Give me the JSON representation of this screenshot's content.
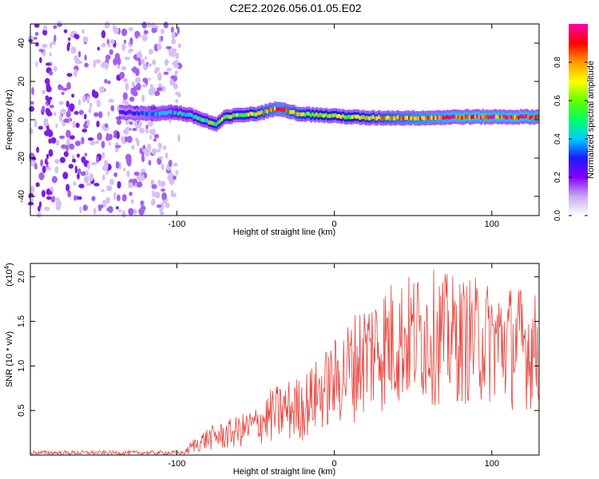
{
  "figure_title": "C2E2.2026.056.01.05.E02",
  "chart_data": [
    {
      "type": "heatmap",
      "title": "C2E2.2026.056.01.05.E02",
      "xlabel": "Height of straight line (km)",
      "ylabel": "Frequency (Hz)",
      "xlim": [
        -193,
        130
      ],
      "ylim": [
        -50,
        50
      ],
      "xticks": [
        -100,
        0,
        100
      ],
      "xtick_labels": [
        "-100",
        "0",
        "100"
      ],
      "yticks": [
        -40,
        -20,
        0,
        20,
        40
      ],
      "ytick_labels": [
        "-40",
        "-20",
        "0",
        "20",
        "40"
      ],
      "noise_region_x": [
        -193,
        -98
      ],
      "signal_start_x": -136,
      "ridge": {
        "x": [
          -136,
          -125,
          -115,
          -105,
          -98,
          -90,
          -80,
          -75,
          -70,
          -60,
          -50,
          -40,
          -35,
          -30,
          -25,
          -20,
          -10,
          0,
          10,
          20,
          40,
          60,
          80,
          100,
          120,
          130
        ],
        "freq": [
          4,
          3.5,
          3,
          4,
          3.5,
          2,
          -1,
          -2.5,
          1,
          2.5,
          3,
          5,
          6,
          5,
          3.5,
          3,
          2.5,
          2,
          1.5,
          1,
          1,
          1,
          1.5,
          1.5,
          1.5,
          1.5
        ],
        "amplitude": [
          0.25,
          0.3,
          0.35,
          0.4,
          0.45,
          0.5,
          0.55,
          0.55,
          0.6,
          0.6,
          0.7,
          0.8,
          0.85,
          0.8,
          0.75,
          0.7,
          0.65,
          0.65,
          0.65,
          0.7,
          0.8,
          0.85,
          0.9,
          0.9,
          0.9,
          0.9
        ]
      },
      "colorbar": {
        "label": "Normalized spectral amplitude",
        "range": [
          0,
          1
        ],
        "ticks": [
          0.0,
          0.2,
          0.4,
          0.6,
          0.8
        ],
        "tick_labels": [
          "0.0",
          "0.2",
          "0.4",
          "0.6",
          "0.8"
        ],
        "colors": [
          "#ffffff",
          "#c8a8f0",
          "#8800ff",
          "#1a1aff",
          "#00ccff",
          "#00ff66",
          "#66ff00",
          "#ffff00",
          "#ff9900",
          "#ff0000",
          "#ff00aa"
        ]
      }
    },
    {
      "type": "line",
      "xlabel": "Height of straight line (km)",
      "ylabel": "SNR (10 * v/v)",
      "scale_label": "(x10",
      "scale_exponent": "4",
      "scale_close": ")",
      "xlim": [
        -193,
        130
      ],
      "ylim": [
        0,
        2.15
      ],
      "xticks": [
        -100,
        0,
        100
      ],
      "xtick_labels": [
        "-100",
        "0",
        "100"
      ],
      "yticks": [
        0.5,
        1.0,
        1.5,
        2.0
      ],
      "ytick_labels": [
        "0.5",
        "1.0",
        "1.5",
        "2.0"
      ],
      "series": [
        {
          "name": "SNR",
          "color": "#e8413a",
          "envelope": {
            "x": [
              -193,
              -95,
              -90,
              -80,
              -70,
              -60,
              -50,
              -40,
              -30,
              -20,
              -10,
              0,
              10,
              20,
              30,
              40,
              50,
              60,
              70,
              80,
              90,
              100,
              110,
              120,
              130
            ],
            "low": [
              0.0,
              0.0,
              0.02,
              0.05,
              0.05,
              0.08,
              0.1,
              0.12,
              0.12,
              0.15,
              0.25,
              0.3,
              0.35,
              0.4,
              0.45,
              0.5,
              0.55,
              0.55,
              0.55,
              0.55,
              0.55,
              0.55,
              0.5,
              0.5,
              0.5
            ],
            "high": [
              0.05,
              0.05,
              0.18,
              0.32,
              0.38,
              0.45,
              0.55,
              0.75,
              0.85,
              0.9,
              1.1,
              1.3,
              1.55,
              1.8,
              1.95,
              2.0,
              2.05,
              2.1,
              2.05,
              2.0,
              2.0,
              1.95,
              1.95,
              1.9,
              1.8
            ]
          }
        }
      ]
    }
  ]
}
